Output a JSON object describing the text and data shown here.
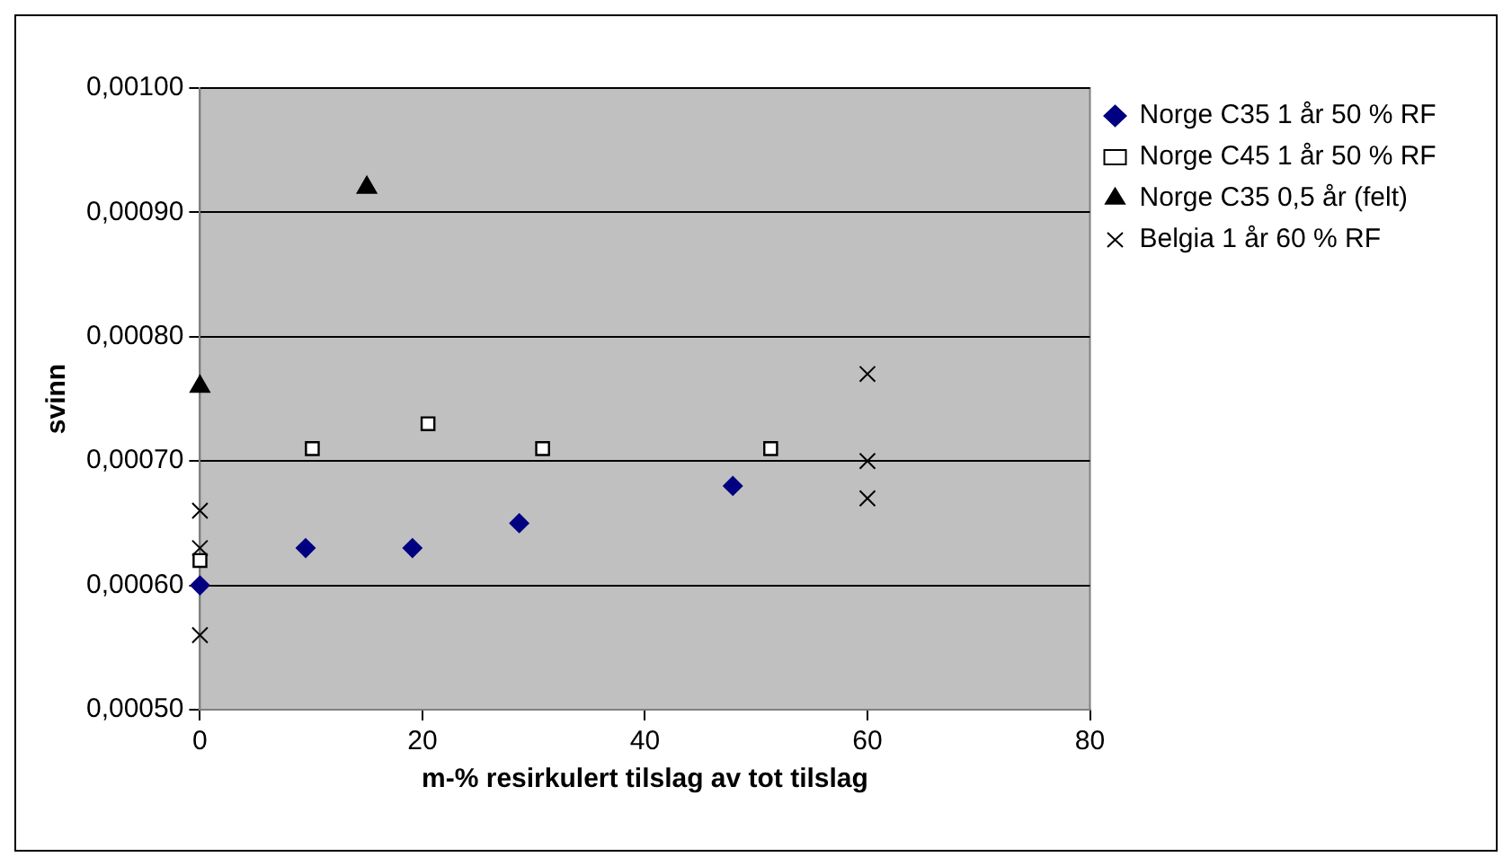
{
  "chart_data": {
    "type": "scatter",
    "xlabel": "m-% resirkulert tilslag av tot tilslag",
    "ylabel": "svinn",
    "xlim": [
      0,
      80
    ],
    "xticks": [
      0,
      20,
      40,
      60,
      80
    ],
    "ylim": [
      0.0005,
      0.001
    ],
    "yticks": [
      {
        "value": 0.0005,
        "label": "0,00050"
      },
      {
        "value": 0.0006,
        "label": "0,00060"
      },
      {
        "value": 0.0007,
        "label": "0,00070"
      },
      {
        "value": 0.0008,
        "label": "0,00080"
      },
      {
        "value": 0.0009,
        "label": "0,00090"
      },
      {
        "value": 0.001,
        "label": "0,00100"
      }
    ],
    "grid": "y",
    "legend": "right",
    "series": [
      {
        "name": "Norge C35 1 år 50 % RF",
        "color": "#000080",
        "marker": "diamond",
        "x": [
          0,
          9.5,
          19.1,
          28.7,
          47.9
        ],
        "values": [
          0.0006,
          0.00063,
          0.00063,
          0.00065,
          0.00068
        ]
      },
      {
        "name": "Norge C45 1 år 50 % RF",
        "color": "#ffffff",
        "marker": "square",
        "x": [
          0,
          10.1,
          20.5,
          30.8,
          51.3
        ],
        "values": [
          0.00062,
          0.00071,
          0.00073,
          0.00071,
          0.00071
        ]
      },
      {
        "name": "Norge C35 0,5 år (felt)",
        "color": "#000000",
        "marker": "triangle",
        "x": [
          0,
          15
        ],
        "values": [
          0.00076,
          0.00092
        ]
      },
      {
        "name": "Belgia 1 år 60 % RF",
        "color": "#000000",
        "marker": "cross",
        "x": [
          0,
          0,
          0,
          60,
          60,
          60
        ],
        "values": [
          0.00066,
          0.00063,
          0.00056,
          0.00077,
          0.0007,
          0.00067
        ]
      }
    ]
  }
}
